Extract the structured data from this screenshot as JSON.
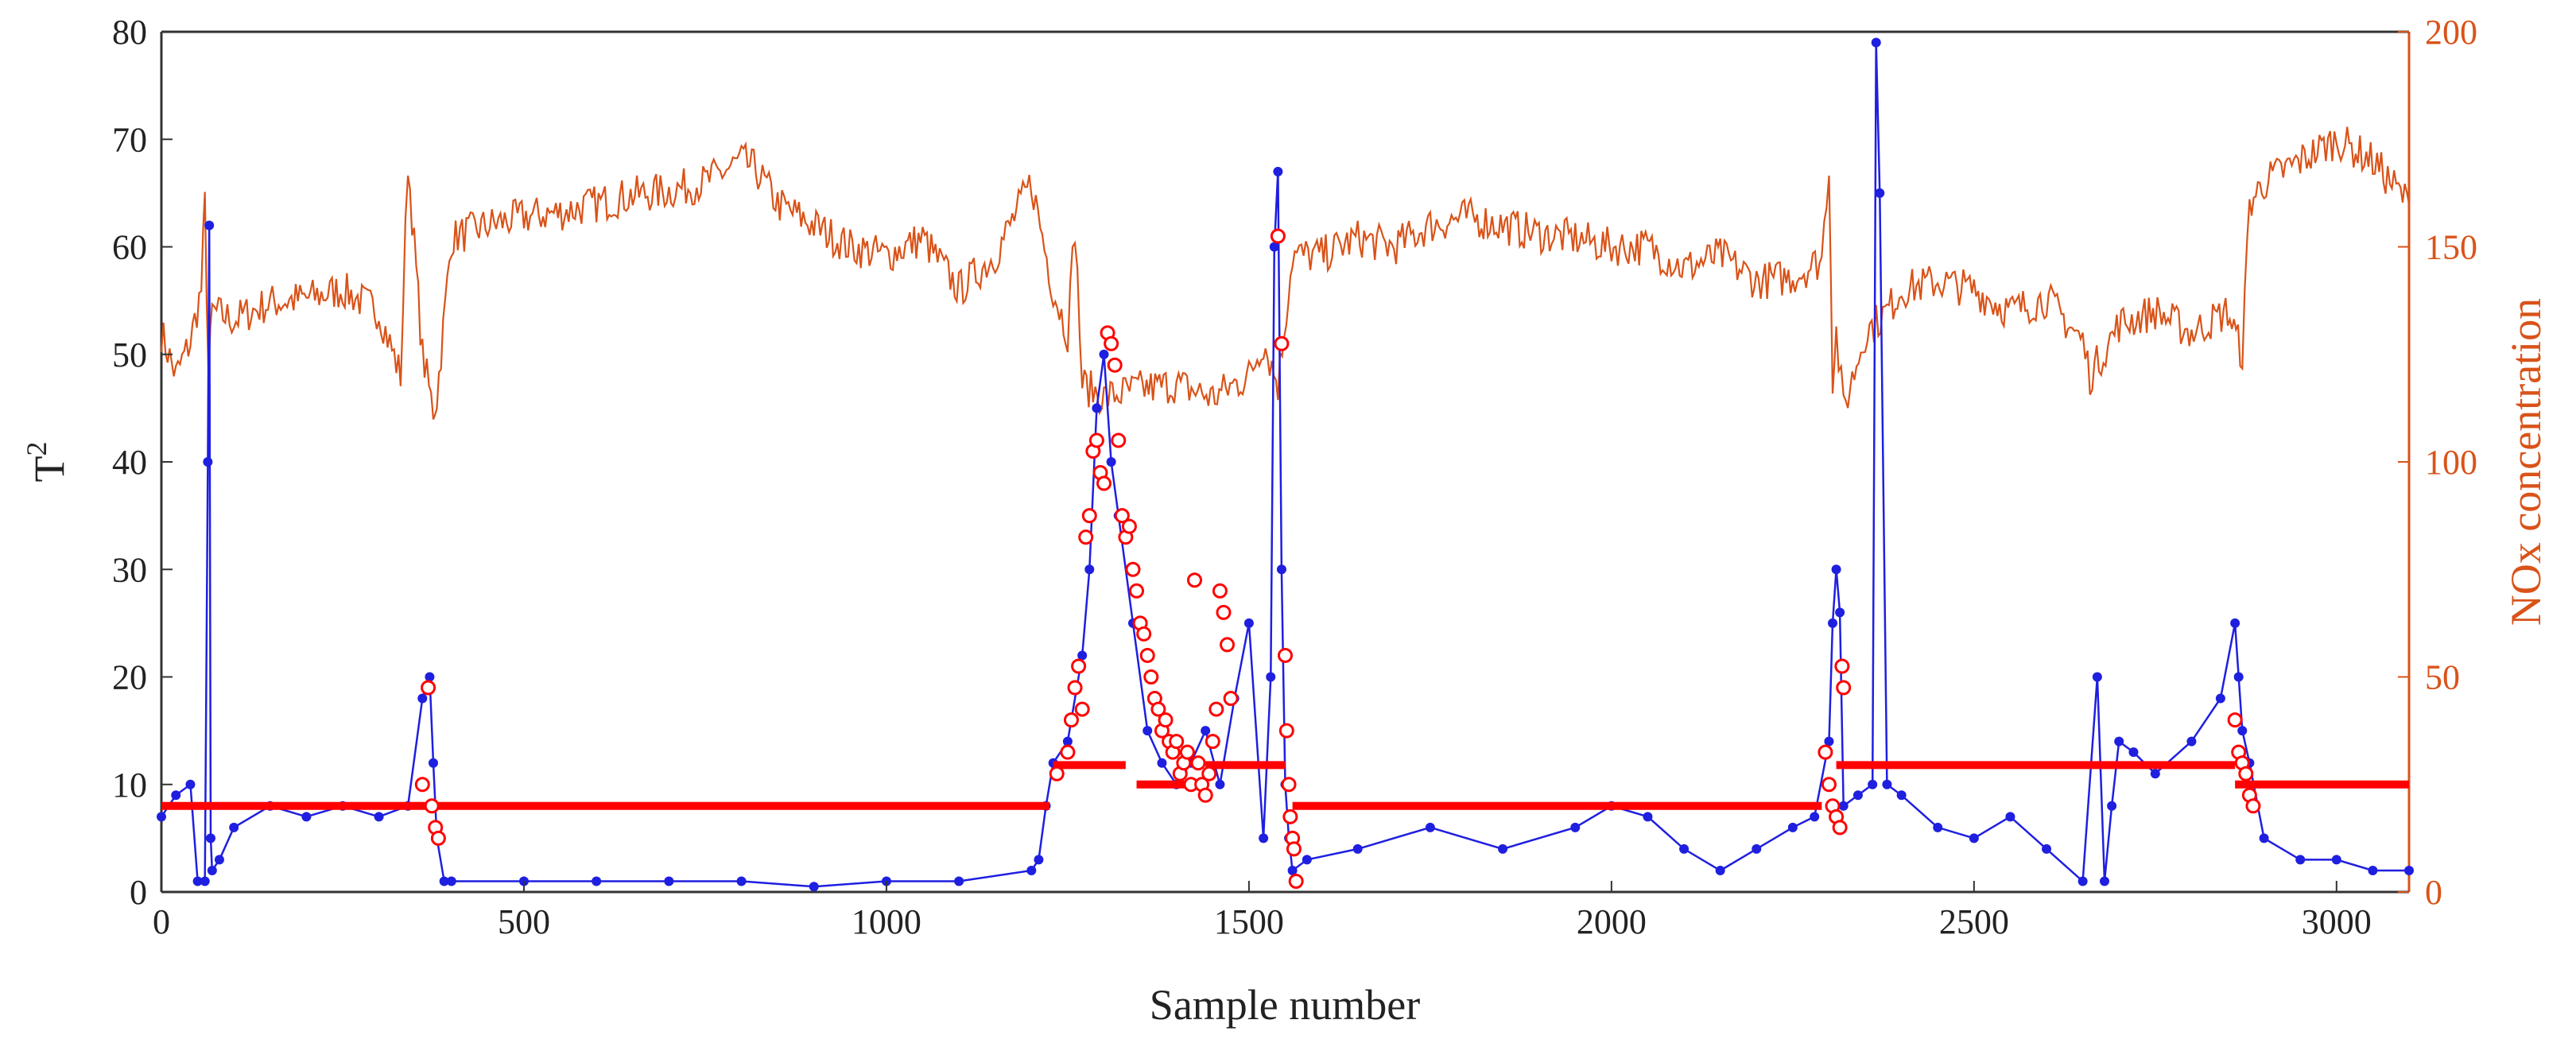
{
  "chart_data": {
    "type": "line",
    "xlabel": "Sample number",
    "ylabel_left": "T",
    "ylabel_left_superscript": "2",
    "ylabel_right": "NOx concentration",
    "xlim": [
      0,
      3100
    ],
    "ylim_left": [
      0,
      80
    ],
    "ylim_right": [
      0,
      200
    ],
    "x_ticks": [
      "0",
      "500",
      "1000",
      "1500",
      "2000",
      "2500",
      "3000"
    ],
    "y_left_ticks": [
      "0",
      "10",
      "20",
      "30",
      "40",
      "50",
      "60",
      "70",
      "80"
    ],
    "y_right_ticks": [
      "0",
      "50",
      "100",
      "150",
      "200"
    ],
    "colors": {
      "t2_series": "#1f1fe0",
      "nox_series": "#d95319",
      "threshold": "#ff0000",
      "fault_marker": "#ff0000",
      "axis": "#333333",
      "right_axis": "#d95319"
    },
    "series": [
      {
        "name": "NOx concentration",
        "axis": "right",
        "style": "line",
        "x": [
          0,
          20,
          40,
          55,
          60,
          65,
          70,
          100,
          150,
          200,
          250,
          300,
          330,
          340,
          360,
          375,
          380,
          400,
          450,
          500,
          550,
          600,
          650,
          700,
          750,
          800,
          820,
          850,
          900,
          950,
          1000,
          1050,
          1100,
          1150,
          1200,
          1230,
          1250,
          1260,
          1270,
          1300,
          1350,
          1400,
          1450,
          1480,
          1500,
          1520,
          1540,
          1560,
          1600,
          1650,
          1700,
          1750,
          1800,
          1850,
          1900,
          1950,
          2000,
          2050,
          2100,
          2150,
          2200,
          2250,
          2290,
          2300,
          2305,
          2310,
          2320,
          2350,
          2380,
          2400,
          2450,
          2500,
          2550,
          2600,
          2650,
          2660,
          2700,
          2750,
          2800,
          2850,
          2870,
          2880,
          2900,
          2950,
          3000,
          3050,
          3100
        ],
        "values": [
          130,
          120,
          128,
          140,
          160,
          120,
          135,
          133,
          137,
          138,
          140,
          135,
          120,
          170,
          125,
          112,
          115,
          152,
          155,
          157,
          158,
          160,
          162,
          163,
          165,
          170,
          168,
          160,
          155,
          150,
          148,
          152,
          140,
          148,
          165,
          140,
          130,
          155,
          118,
          115,
          117,
          118,
          115,
          118,
          120,
          128,
          118,
          148,
          148,
          152,
          150,
          155,
          157,
          155,
          153,
          152,
          150,
          150,
          145,
          148,
          142,
          143,
          147,
          170,
          120,
          130,
          112,
          130,
          135,
          140,
          142,
          140,
          135,
          138,
          128,
          120,
          132,
          135,
          130,
          135,
          125,
          160,
          165,
          170,
          175,
          170,
          160
        ]
      },
      {
        "name": "T2",
        "axis": "left",
        "style": "line-markers",
        "x": [
          0,
          20,
          40,
          50,
          60,
          64,
          66,
          68,
          70,
          80,
          100,
          150,
          200,
          250,
          300,
          340,
          360,
          370,
          375,
          380,
          390,
          400,
          500,
          600,
          700,
          800,
          900,
          1000,
          1100,
          1200,
          1210,
          1220,
          1230,
          1250,
          1270,
          1280,
          1290,
          1300,
          1310,
          1320,
          1340,
          1360,
          1380,
          1400,
          1420,
          1440,
          1460,
          1480,
          1500,
          1520,
          1530,
          1535,
          1540,
          1545,
          1550,
          1555,
          1560,
          1580,
          1650,
          1750,
          1850,
          1950,
          2000,
          2050,
          2100,
          2150,
          2200,
          2250,
          2280,
          2300,
          2305,
          2310,
          2315,
          2320,
          2340,
          2360,
          2365,
          2370,
          2380,
          2400,
          2450,
          2500,
          2550,
          2600,
          2650,
          2670,
          2680,
          2690,
          2700,
          2720,
          2750,
          2800,
          2840,
          2860,
          2865,
          2870,
          2880,
          2900,
          2950,
          3000,
          3050,
          3100
        ],
        "values": [
          7,
          9,
          10,
          1,
          1,
          40,
          62,
          5,
          2,
          3,
          6,
          8,
          7,
          8,
          7,
          8,
          18,
          20,
          12,
          5,
          1,
          1,
          1,
          1,
          1,
          1,
          0.5,
          1,
          1,
          2,
          3,
          8,
          12,
          14,
          22,
          30,
          45,
          50,
          40,
          35,
          25,
          15,
          12,
          10,
          12,
          15,
          10,
          18,
          25,
          5,
          20,
          60,
          67,
          30,
          10,
          5,
          2,
          3,
          4,
          6,
          4,
          6,
          8,
          7,
          4,
          2,
          4,
          6,
          7,
          14,
          25,
          30,
          26,
          8,
          9,
          10,
          79,
          65,
          10,
          9,
          6,
          5,
          7,
          4,
          1,
          20,
          1,
          8,
          14,
          13,
          11,
          14,
          18,
          25,
          20,
          15,
          12,
          5,
          3,
          3,
          2,
          2
        ]
      },
      {
        "name": "Control limit",
        "axis": "left",
        "style": "step",
        "segments": [
          {
            "x0": 0,
            "x1": 1225,
            "y": 8
          },
          {
            "x0": 1230,
            "x1": 1330,
            "y": 11.8
          },
          {
            "x0": 1345,
            "x1": 1440,
            "y": 10
          },
          {
            "x0": 1440,
            "x1": 1550,
            "y": 11.8
          },
          {
            "x0": 1560,
            "x1": 2290,
            "y": 8
          },
          {
            "x0": 2310,
            "x1": 2860,
            "y": 11.8
          },
          {
            "x0": 2860,
            "x1": 3100,
            "y": 10
          }
        ]
      },
      {
        "name": "Fault samples",
        "axis": "left",
        "style": "markers",
        "x": [
          360,
          368,
          373,
          378,
          382,
          1235,
          1250,
          1255,
          1260,
          1265,
          1270,
          1275,
          1280,
          1285,
          1290,
          1295,
          1300,
          1305,
          1310,
          1315,
          1320,
          1325,
          1330,
          1335,
          1340,
          1345,
          1350,
          1355,
          1360,
          1365,
          1370,
          1375,
          1380,
          1385,
          1390,
          1395,
          1400,
          1405,
          1410,
          1415,
          1420,
          1425,
          1430,
          1435,
          1440,
          1445,
          1450,
          1455,
          1460,
          1465,
          1470,
          1475,
          1540,
          1545,
          1550,
          1552,
          1555,
          1557,
          1560,
          1562,
          1565,
          2295,
          2300,
          2305,
          2310,
          2315,
          2318,
          2320,
          2860,
          2865,
          2870,
          2875,
          2880,
          2885
        ],
        "values": [
          10,
          19,
          8,
          6,
          5,
          11,
          13,
          16,
          19,
          21,
          17,
          33,
          35,
          41,
          42,
          39,
          38,
          52,
          51,
          49,
          42,
          35,
          33,
          34,
          30,
          28,
          25,
          24,
          22,
          20,
          18,
          17,
          15,
          16,
          14,
          13,
          14,
          11,
          12,
          13,
          10,
          29,
          12,
          10,
          9,
          11,
          14,
          17,
          28,
          26,
          23,
          18,
          61,
          51,
          22,
          15,
          10,
          7,
          5,
          4,
          1,
          13,
          10,
          8,
          7,
          6,
          21,
          19,
          16,
          13,
          12,
          11,
          9,
          8
        ]
      }
    ]
  }
}
